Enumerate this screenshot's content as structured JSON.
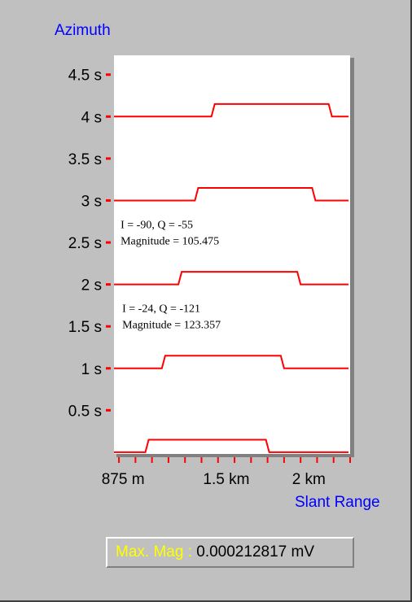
{
  "colors": {
    "background": "#c0c0c0",
    "plot_background": "#ffffff",
    "trace": "#ff0000",
    "axis_title": "#0000ff",
    "tick_label": "#000000",
    "readout_label": "#ffff00",
    "readout_value": "#000000"
  },
  "max_mag": {
    "label": "Max. Mag :",
    "value": "0.000212817 mV"
  },
  "chart_data": {
    "type": "line",
    "ylabel": "Azimuth",
    "xlabel": "Slant Range",
    "y_ticks": [
      "0.5 s",
      "1 s",
      "1.5 s",
      "2 s",
      "2.5 s",
      "3 s",
      "3.5 s",
      "4 s",
      "4.5 s"
    ],
    "y_tick_values": [
      0.5,
      1,
      1.5,
      2,
      2.5,
      3,
      3.5,
      4,
      4.5
    ],
    "x_ticks": [
      "875 m",
      "1.5 km",
      "2 km"
    ],
    "x_tick_values": [
      0.875,
      1.5,
      2.0
    ],
    "ylim": [
      -0.02,
      4.73
    ],
    "xlim": [
      0.82,
      2.25
    ],
    "pulse_height_s": 0.15,
    "series": [
      {
        "baseline": 0,
        "rise": [
          1.01,
          1.03
        ],
        "fall": [
          1.74,
          1.76
        ]
      },
      {
        "baseline": 1,
        "rise": [
          1.11,
          1.13
        ],
        "fall": [
          1.83,
          1.85
        ]
      },
      {
        "baseline": 2,
        "rise": [
          1.21,
          1.23
        ],
        "fall": [
          1.93,
          1.95
        ]
      },
      {
        "baseline": 3,
        "rise": [
          1.31,
          1.33
        ],
        "fall": [
          2.02,
          2.04
        ]
      },
      {
        "baseline": 4,
        "rise": [
          1.41,
          1.43
        ],
        "fall": [
          2.12,
          2.14
        ]
      }
    ],
    "annotations": [
      {
        "lines": [
          "I = -90, Q = -55",
          "Magnitude = 105.475"
        ],
        "x": 0.86,
        "y": 2.67
      },
      {
        "lines": [
          "I = -24, Q = -121",
          "Magnitude = 123.357"
        ],
        "x": 0.87,
        "y": 1.67
      }
    ]
  }
}
